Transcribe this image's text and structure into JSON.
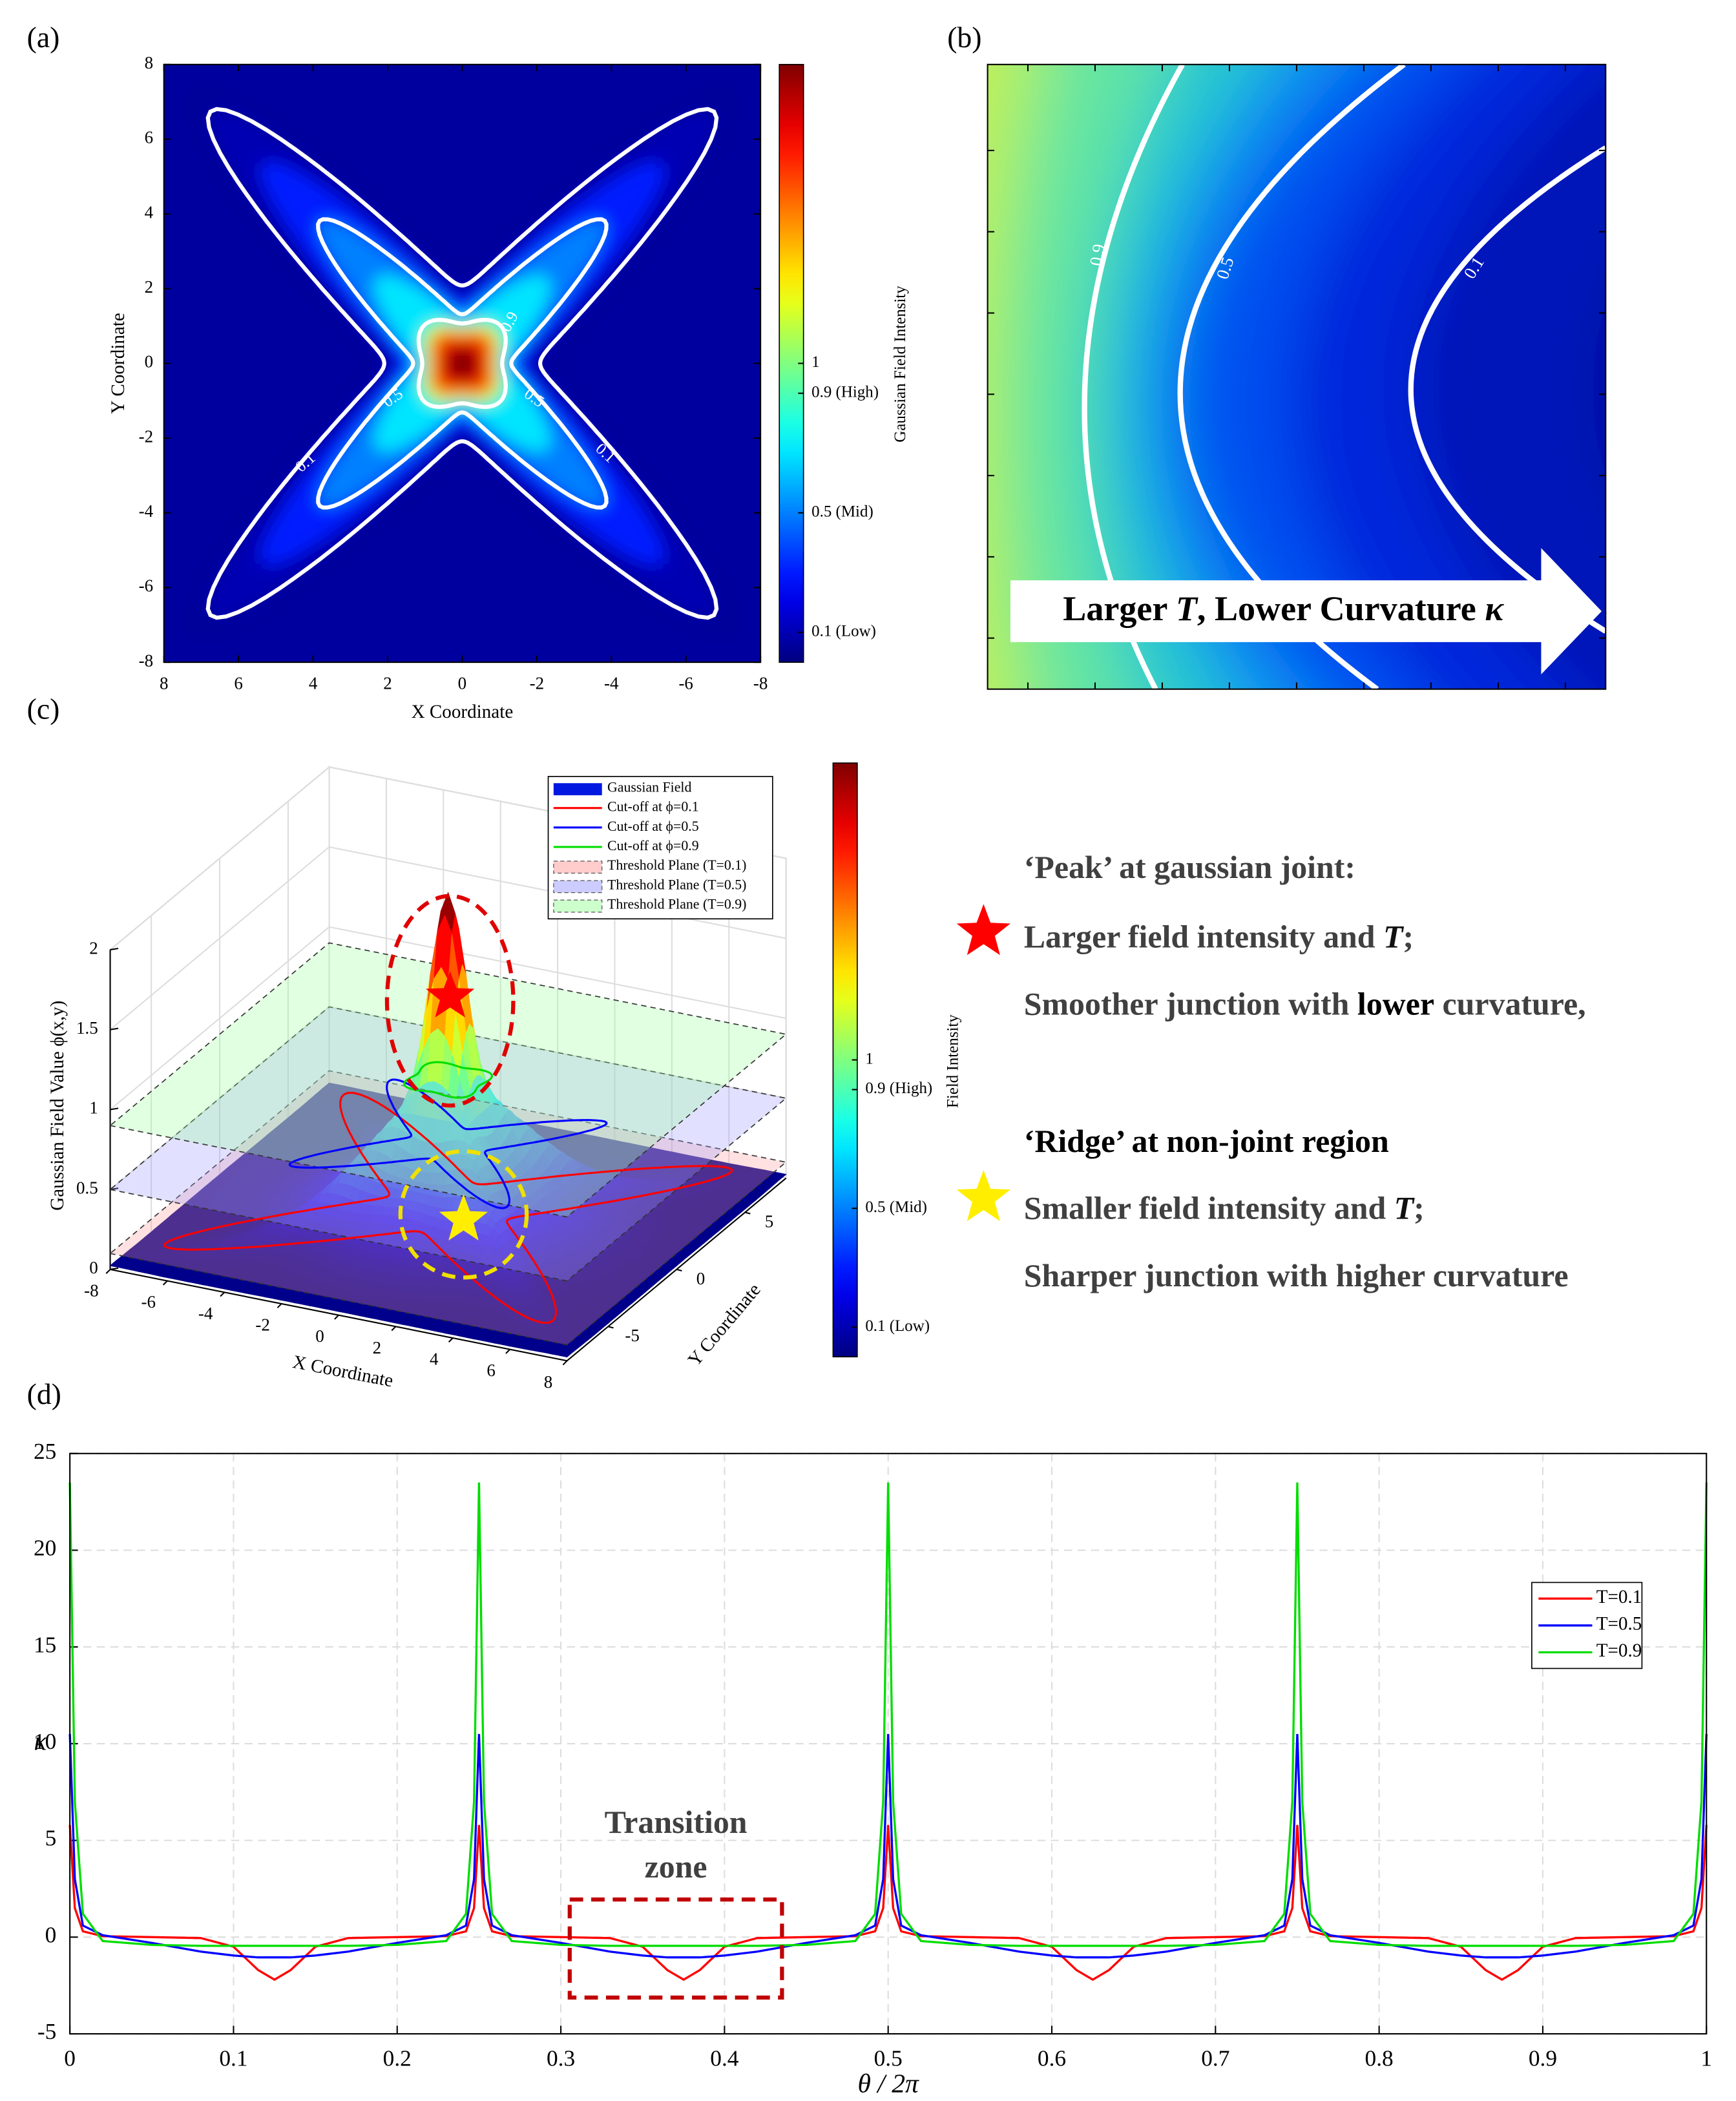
{
  "chart_data": [
    {
      "type": "heatmap",
      "label": "(a)",
      "xlabel": "X Coordinate",
      "ylabel": "Y Coordinate",
      "xlim": [
        8,
        -8
      ],
      "ylim": [
        -8,
        8
      ],
      "xticks": [
        8,
        6,
        4,
        2,
        0,
        -2,
        -4,
        -6,
        -8
      ],
      "yticks": [
        -8,
        -6,
        -4,
        -2,
        0,
        2,
        4,
        6,
        8
      ],
      "colorbar_label": "Gaussian Field Intensity",
      "clim": [
        0,
        2
      ],
      "cticks": [
        {
          "value": 0.1,
          "label": "0.1 (Low)"
        },
        {
          "value": 0.5,
          "label": "0.5 (Mid)"
        },
        {
          "value": 0.9,
          "label": "0.9 (High)"
        },
        1
      ],
      "contour_levels": [
        0.1,
        0.5,
        0.9
      ]
    },
    {
      "type": "contour-zoom",
      "label": "(b)",
      "contour_levels": [
        0.1,
        0.5,
        0.9
      ],
      "annotation": [
        "Larger ",
        "T",
        ", Lower Curvature ",
        "κ"
      ]
    },
    {
      "type": "surface",
      "label": "(c)",
      "xlabel": "X Coordinate",
      "ylabel": "Y Coordinate",
      "zlabel": "Gaussian Field Value ϕ(x,y)",
      "xlim": [
        -8,
        8
      ],
      "ylim": [
        -8,
        8
      ],
      "zlim": [
        0,
        2
      ],
      "xticks": [
        -8,
        -6,
        -4,
        -2,
        0,
        2,
        4,
        6,
        8
      ],
      "yticks": [
        -5,
        0,
        5
      ],
      "zticks": [
        0,
        0.5,
        1,
        1.5,
        2
      ],
      "thresholds": [
        0.1,
        0.5,
        0.9
      ],
      "legend": [
        "Gaussian Field",
        "Cut-off at ϕ=0.1",
        "Cut-off at ϕ=0.5",
        "Cut-off at ϕ=0.9",
        "Threshold Plane (T=0.1)",
        "Threshold Plane (T=0.5)",
        "Threshold Plane (T=0.9)"
      ],
      "colorbar_label": "Field Intensity",
      "clim": [
        0,
        2
      ],
      "cticks": [
        {
          "value": 0.1,
          "label": "0.1 (Low)"
        },
        {
          "value": 0.5,
          "label": "0.5 (Mid)"
        },
        {
          "value": 0.9,
          "label": "0.9 (High)"
        },
        1
      ],
      "side_text": {
        "peak_title": "‘Peak’ at gaussian joint:",
        "peak_lines": [
          [
            "Larger field intensity and ",
            "T",
            ";"
          ],
          [
            "Smoother junction with ",
            "lower",
            " curvature,"
          ]
        ],
        "ridge_title": "‘Ridge’ at non-joint region",
        "ridge_lines": [
          [
            "Smaller field intensity and ",
            "T",
            ";"
          ],
          [
            "Sharper junction with higher curvature"
          ]
        ]
      }
    },
    {
      "type": "line",
      "label": "(d)",
      "xlabel": "θ / 2π",
      "ylabel": "κ",
      "xlim": [
        0,
        1
      ],
      "ylim": [
        -5,
        25
      ],
      "xticks": [
        0,
        0.1,
        0.2,
        0.3,
        0.4,
        0.5,
        0.6,
        0.7,
        0.8,
        0.9,
        1
      ],
      "yticks": [
        -5,
        0,
        5,
        10,
        15,
        20,
        25
      ],
      "grid": true,
      "annotation": [
        "Transition",
        "zone"
      ],
      "x": [
        0,
        0.003,
        0.008,
        0.02,
        0.05,
        0.08,
        0.1,
        0.115,
        0.125,
        0.135,
        0.15,
        0.17,
        0.2,
        0.23,
        0.242,
        0.247,
        0.25,
        0.253,
        0.258,
        0.27,
        0.3,
        0.33,
        0.35,
        0.365,
        0.375,
        0.385,
        0.4,
        0.42,
        0.45,
        0.48,
        0.492,
        0.497,
        0.5,
        0.503,
        0.508,
        0.52,
        0.55,
        0.58,
        0.6,
        0.615,
        0.625,
        0.635,
        0.65,
        0.67,
        0.7,
        0.73,
        0.742,
        0.747,
        0.75,
        0.753,
        0.758,
        0.77,
        0.8,
        0.83,
        0.85,
        0.865,
        0.875,
        0.885,
        0.9,
        0.92,
        0.95,
        0.98,
        0.992,
        0.997,
        1
      ],
      "series": [
        {
          "name": "T=0.1",
          "color": "#ff0000",
          "values": [
            5.8,
            1.5,
            0.3,
            0.05,
            0,
            -0.05,
            -0.5,
            -1.7,
            -2.2,
            -1.7,
            -0.5,
            -0.05,
            0,
            0.05,
            0.3,
            1.5,
            5.8,
            1.5,
            0.3,
            0.05,
            0,
            -0.05,
            -0.5,
            -1.7,
            -2.2,
            -1.7,
            -0.5,
            -0.05,
            0,
            0.05,
            0.3,
            1.5,
            5.8,
            1.5,
            0.3,
            0.05,
            0,
            -0.05,
            -0.5,
            -1.7,
            -2.2,
            -1.7,
            -0.5,
            -0.05,
            0,
            0.05,
            0.3,
            1.5,
            5.8,
            1.5,
            0.3,
            0.05,
            0,
            -0.05,
            -0.5,
            -1.7,
            -2.2,
            -1.7,
            -0.5,
            -0.05,
            0,
            0.05,
            0.3,
            1.5,
            5.8
          ]
        },
        {
          "name": "T=0.5",
          "color": "#0000ff",
          "values": [
            10.5,
            3,
            0.6,
            0.1,
            -0.3,
            -0.75,
            -0.95,
            -1.05,
            -1.05,
            -1.05,
            -0.95,
            -0.75,
            -0.3,
            0.1,
            0.6,
            3,
            10.5,
            3,
            0.6,
            0.1,
            -0.3,
            -0.75,
            -0.95,
            -1.05,
            -1.05,
            -1.05,
            -0.95,
            -0.75,
            -0.3,
            0.1,
            0.6,
            3,
            10.5,
            3,
            0.6,
            0.1,
            -0.3,
            -0.75,
            -0.95,
            -1.05,
            -1.05,
            -1.05,
            -0.95,
            -0.75,
            -0.3,
            0.1,
            0.6,
            3,
            10.5,
            3,
            0.6,
            0.1,
            -0.3,
            -0.75,
            -0.95,
            -1.05,
            -1.05,
            -1.05,
            -0.95,
            -0.75,
            -0.3,
            0.1,
            0.6,
            3,
            10.5
          ]
        },
        {
          "name": "T=0.9",
          "color": "#00dd00",
          "values": [
            23.5,
            7,
            1.2,
            -0.2,
            -0.4,
            -0.45,
            -0.45,
            -0.45,
            -0.45,
            -0.45,
            -0.45,
            -0.45,
            -0.4,
            -0.2,
            1.2,
            7,
            23.5,
            7,
            1.2,
            -0.2,
            -0.4,
            -0.45,
            -0.45,
            -0.45,
            -0.45,
            -0.45,
            -0.45,
            -0.45,
            -0.4,
            -0.2,
            1.2,
            7,
            23.5,
            7,
            1.2,
            -0.2,
            -0.4,
            -0.45,
            -0.45,
            -0.45,
            -0.45,
            -0.45,
            -0.45,
            -0.45,
            -0.4,
            -0.2,
            1.2,
            7,
            23.5,
            7,
            1.2,
            -0.2,
            -0.4,
            -0.45,
            -0.45,
            -0.45,
            -0.45,
            -0.45,
            -0.45,
            -0.45,
            -0.4,
            -0.2,
            1.2,
            7,
            23.5
          ]
        }
      ]
    }
  ]
}
